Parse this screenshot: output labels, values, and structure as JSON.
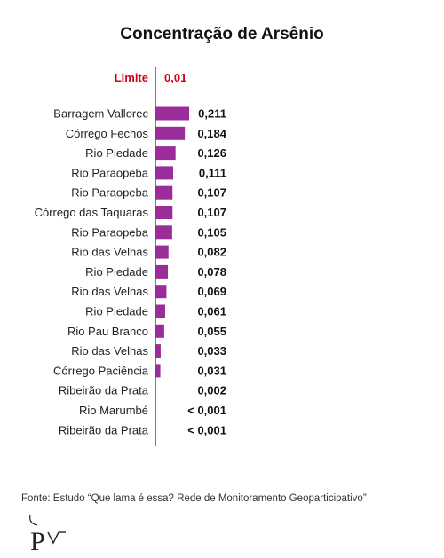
{
  "chart_data": {
    "type": "bar",
    "orientation": "horizontal",
    "title": "Concentração de Arsênio",
    "categories": [
      "Barragem Vallorec",
      "Córrego Fechos",
      "Rio Piedade",
      "Rio Paraopeba",
      "Rio Paraopeba",
      "Córrego das Taquaras",
      "Rio Paraopeba",
      "Rio das Velhas",
      "Rio Piedade",
      "Rio das Velhas",
      "Rio Piedade",
      "Rio Pau Branco",
      "Rio das Velhas",
      "Córrego Paciência",
      "Ribeirão da Prata",
      "Rio Marumbé",
      "Ribeirão da Prata"
    ],
    "values": [
      0.211,
      0.184,
      0.126,
      0.111,
      0.107,
      0.107,
      0.105,
      0.082,
      0.078,
      0.069,
      0.061,
      0.055,
      0.033,
      0.031,
      0.002,
      0.001,
      0.001
    ],
    "value_labels": [
      "0,211",
      "0,184",
      "0,126",
      "0,111",
      "0,107",
      "0,107",
      "0,105",
      "0,082",
      "0,078",
      "0,069",
      "0,061",
      "0,055",
      "0,033",
      "0,031",
      "0,002",
      "< 0,001",
      "< 0,001"
    ],
    "limit": {
      "label": "Limite",
      "value": 0.01,
      "value_label": "0,01",
      "color": "#d0021b"
    },
    "bar_color": "#9b2d9b",
    "xlim": [
      0,
      0.25
    ],
    "grid": false,
    "legend": "none"
  },
  "source": "Fonte: Estudo “Que lama é essa? Rede de Monitoramento Geoparticipativo”"
}
